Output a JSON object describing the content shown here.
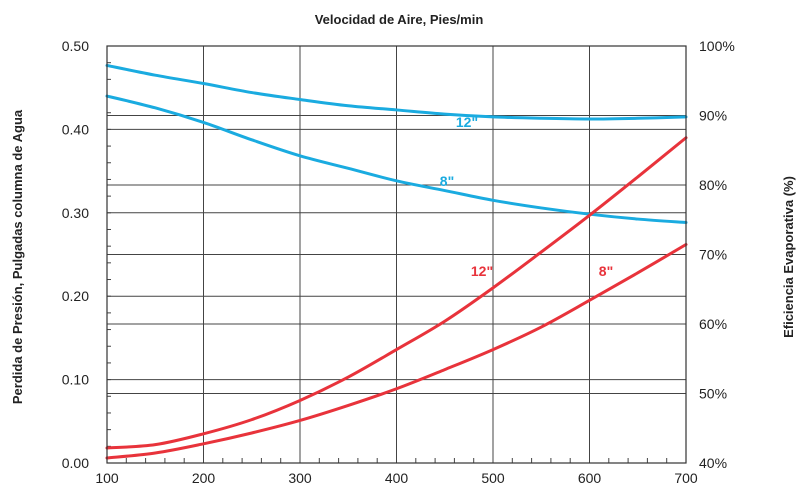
{
  "chart_data": {
    "type": "line",
    "title": "Velocidad de Aire, Pies/min",
    "ylabel_left": "Perdida de Presión, Pulgadas columna de Agua",
    "ylabel_right": "Eficiencia Evaporativa (%)",
    "x_ticks": [
      "100",
      "200",
      "300",
      "400",
      "500",
      "600",
      "700"
    ],
    "y_left_ticks": [
      "0.00",
      "0.10",
      "0.20",
      "0.30",
      "0.40",
      "0.50"
    ],
    "y_right_ticks": [
      "40%",
      "50%",
      "60%",
      "70%",
      "80%",
      "90%",
      "100%"
    ],
    "xlim": [
      100,
      700
    ],
    "ylim_left": [
      0,
      0.5
    ],
    "ylim_right": [
      40,
      100
    ],
    "grid": true,
    "series": [
      {
        "name": "12\"",
        "axis": "right",
        "color": "#1aabe0",
        "x": [
          100,
          150,
          200,
          250,
          300,
          350,
          400,
          450,
          500,
          550,
          600,
          650,
          700
        ],
        "y": [
          97.2,
          95.8,
          94.6,
          93.3,
          92.3,
          91.4,
          90.8,
          90.2,
          89.8,
          89.6,
          89.5,
          89.6,
          89.8
        ]
      },
      {
        "name": "8\"",
        "axis": "right",
        "color": "#1aabe0",
        "x": [
          100,
          150,
          200,
          250,
          300,
          350,
          400,
          450,
          500,
          550,
          600,
          650,
          700
        ],
        "y": [
          92.8,
          91.1,
          89.0,
          86.5,
          84.2,
          82.4,
          80.6,
          79.2,
          77.8,
          76.7,
          75.8,
          75.1,
          74.6
        ]
      },
      {
        "name": "12\"",
        "axis": "left",
        "color": "#e8333b",
        "x": [
          100,
          150,
          200,
          250,
          300,
          350,
          400,
          450,
          500,
          550,
          600,
          650,
          700
        ],
        "y": [
          0.018,
          0.022,
          0.035,
          0.052,
          0.075,
          0.103,
          0.136,
          0.17,
          0.21,
          0.253,
          0.297,
          0.343,
          0.39
        ]
      },
      {
        "name": "8\"",
        "axis": "left",
        "color": "#e8333b",
        "x": [
          100,
          150,
          200,
          250,
          300,
          350,
          400,
          450,
          500,
          550,
          600,
          650,
          700
        ],
        "y": [
          0.006,
          0.012,
          0.023,
          0.036,
          0.051,
          0.069,
          0.089,
          0.112,
          0.136,
          0.163,
          0.195,
          0.228,
          0.262
        ]
      }
    ]
  }
}
